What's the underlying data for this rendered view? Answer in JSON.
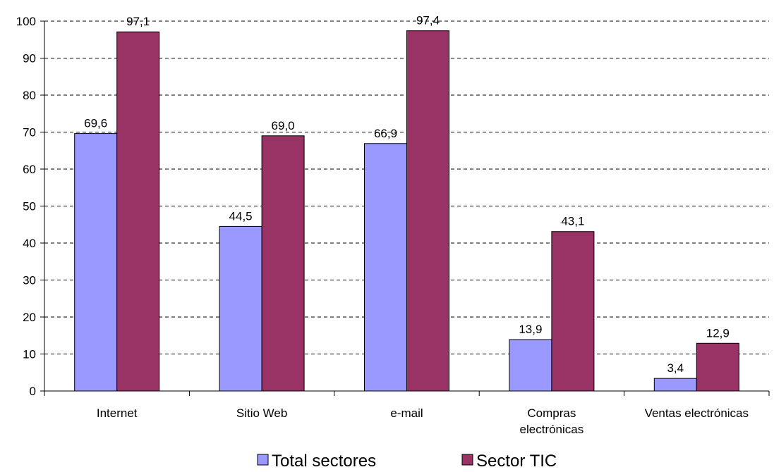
{
  "chart_data": {
    "type": "bar",
    "categories": [
      [
        "Internet"
      ],
      [
        "Sitio Web"
      ],
      [
        "e-mail"
      ],
      [
        "Compras",
        "electrónicas"
      ],
      [
        "Ventas electrónicas"
      ]
    ],
    "series": [
      {
        "name": "Total sectores",
        "color": "#9999ff",
        "values": [
          69.6,
          44.5,
          66.9,
          13.9,
          3.4
        ],
        "labels": [
          "69,6",
          "44,5",
          "66,9",
          "13,9",
          "3,4"
        ]
      },
      {
        "name": "Sector TIC",
        "color": "#993366",
        "values": [
          97.1,
          69.0,
          97.4,
          43.1,
          12.9
        ],
        "labels": [
          "97,1",
          "69,0",
          "97,4",
          "43,1",
          "12,9"
        ]
      }
    ],
    "ylim": [
      0,
      100
    ],
    "yticks": [
      0,
      10,
      20,
      30,
      40,
      50,
      60,
      70,
      80,
      90,
      100
    ],
    "grid": true,
    "grid_style": "dashed",
    "legend_position": "bottom-center",
    "title": "",
    "xlabel": "",
    "ylabel": ""
  }
}
